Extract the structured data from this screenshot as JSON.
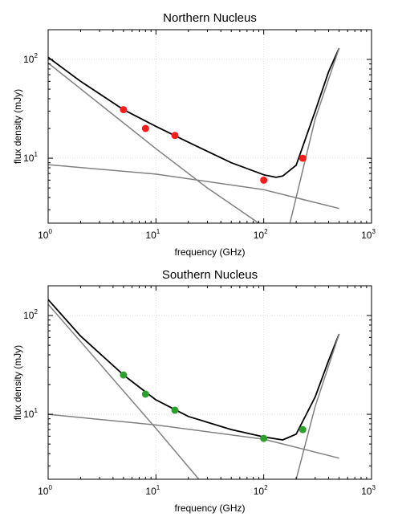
{
  "chart_data": [
    {
      "type": "line",
      "title": "Northern Nucleus",
      "xlabel": "frequency (GHz)",
      "ylabel": "flux density (mJy)",
      "xscale": "log",
      "yscale": "log",
      "xlim": [
        1,
        1000
      ],
      "ylim": [
        2.2,
        200
      ],
      "x_ticks": [
        {
          "base": "10",
          "exp": "0"
        },
        {
          "base": "10",
          "exp": "1"
        },
        {
          "base": "10",
          "exp": "2"
        },
        {
          "base": "10",
          "exp": "3"
        }
      ],
      "y_ticks": [
        {
          "base": "10",
          "exp": "1"
        },
        {
          "base": "10",
          "exp": "2"
        }
      ],
      "grid": true,
      "colors": {
        "total": "#000000",
        "components": "#808080",
        "points": "#ff1a1a"
      },
      "series": [
        {
          "x": [
            1,
            2,
            5,
            10,
            20,
            50,
            100,
            130,
            150,
            200,
            300,
            400,
            500
          ],
          "y": [
            105,
            60,
            31,
            21,
            14.5,
            9,
            6.8,
            6.4,
            6.6,
            8.5,
            30,
            75,
            130
          ]
        },
        {
          "x": [
            1,
            10,
            30,
            90
          ],
          "y": [
            92,
            12.5,
            5.0,
            2.2
          ]
        },
        {
          "x": [
            1,
            10,
            100,
            500
          ],
          "y": [
            8.6,
            6.9,
            4.8,
            3.1
          ]
        },
        {
          "x": [
            175,
            300,
            500
          ],
          "y": [
            2.2,
            25,
            130
          ]
        }
      ],
      "points": {
        "x": [
          5,
          8,
          15,
          100,
          230
        ],
        "y": [
          31,
          20,
          17,
          6,
          10
        ]
      }
    },
    {
      "type": "line",
      "title": "Southern Nucleus",
      "xlabel": "frequency (GHz)",
      "ylabel": "flux density (mJy)",
      "xscale": "log",
      "yscale": "log",
      "xlim": [
        1,
        1000
      ],
      "ylim": [
        2.2,
        200
      ],
      "x_ticks": [
        {
          "base": "10",
          "exp": "0"
        },
        {
          "base": "10",
          "exp": "1"
        },
        {
          "base": "10",
          "exp": "2"
        },
        {
          "base": "10",
          "exp": "3"
        }
      ],
      "y_ticks": [
        {
          "base": "10",
          "exp": "1"
        },
        {
          "base": "10",
          "exp": "2"
        }
      ],
      "grid": true,
      "colors": {
        "total": "#000000",
        "components": "#808080",
        "points": "#2ca02c"
      },
      "series": [
        {
          "x": [
            1,
            2,
            5,
            10,
            20,
            50,
            100,
            150,
            200,
            300,
            400,
            500
          ],
          "y": [
            145,
            62,
            25,
            14,
            9.5,
            7,
            5.9,
            5.5,
            6.3,
            15,
            35,
            65
          ]
        },
        {
          "x": [
            1,
            10,
            25
          ],
          "y": [
            130,
            7.2,
            2.2
          ]
        },
        {
          "x": [
            1,
            10,
            100,
            500
          ],
          "y": [
            10,
            7.8,
            5.6,
            3.6
          ]
        },
        {
          "x": [
            200,
            300,
            500
          ],
          "y": [
            2.2,
            12,
            65
          ]
        }
      ],
      "points": {
        "x": [
          5,
          8,
          15,
          100,
          230
        ],
        "y": [
          25,
          16,
          11,
          5.7,
          7
        ]
      }
    }
  ]
}
